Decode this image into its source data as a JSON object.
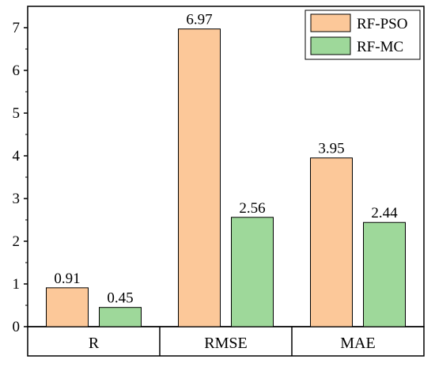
{
  "chart_data": {
    "type": "bar",
    "categories": [
      "R",
      "RMSE",
      "MAE"
    ],
    "series": [
      {
        "name": "RF-PSO",
        "values": [
          0.91,
          6.97,
          3.95
        ],
        "color": "#fcc899"
      },
      {
        "name": "RF-MC",
        "values": [
          0.45,
          2.56,
          2.44
        ],
        "color": "#9ed89a"
      }
    ],
    "data_labels": [
      [
        "0.91",
        "6.97",
        "3.95"
      ],
      [
        "0.45",
        "2.56",
        "2.44"
      ]
    ],
    "ylim": [
      0,
      7.5
    ],
    "yticks": [
      "0",
      "1",
      "2",
      "3",
      "4",
      "5",
      "6",
      "7"
    ],
    "legend_position": "top-right",
    "grid": false
  }
}
